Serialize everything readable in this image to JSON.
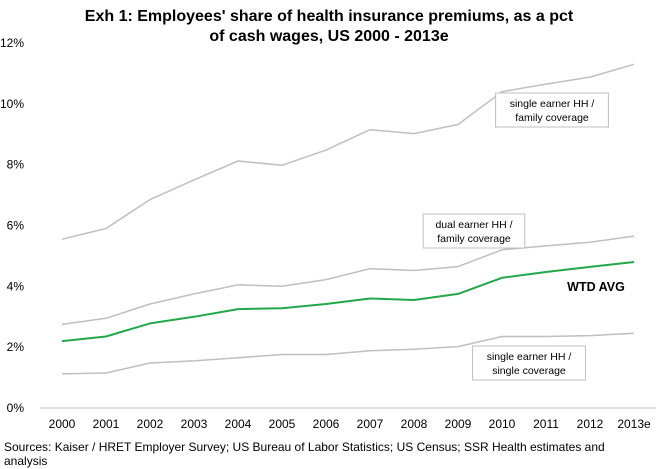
{
  "chart_data": {
    "type": "line",
    "title_line1": "Exh 1: Employees' share of health insurance premiums, as a pct",
    "title_line2": "of cash wages, US 2000 - 2013e",
    "xlabel": "",
    "ylabel": "",
    "categories": [
      "2000",
      "2001",
      "2002",
      "2003",
      "2004",
      "2005",
      "2006",
      "2007",
      "2008",
      "2009",
      "2010",
      "2011",
      "2012",
      "2013e"
    ],
    "ylim": [
      0,
      12
    ],
    "yticks": [
      0,
      2,
      4,
      6,
      8,
      10,
      12
    ],
    "ytick_suffix": "%",
    "grid": false,
    "series": [
      {
        "name": "single earner HH / family coverage",
        "label_lines": [
          "single earner HH /",
          "family coverage"
        ],
        "color": "#bfbfbf",
        "values": [
          5.55,
          5.9,
          6.85,
          7.5,
          8.12,
          7.98,
          8.48,
          9.15,
          9.02,
          9.32,
          10.4,
          10.65,
          10.88,
          11.3
        ]
      },
      {
        "name": "dual earner HH / family coverage",
        "label_lines": [
          "dual earner HH /",
          "family coverage"
        ],
        "color": "#bfbfbf",
        "values": [
          2.75,
          2.95,
          3.42,
          3.75,
          4.05,
          4.0,
          4.22,
          4.58,
          4.52,
          4.65,
          5.2,
          5.33,
          5.45,
          5.65
        ]
      },
      {
        "name": "WTD AVG",
        "label_lines": [
          "WTD AVG"
        ],
        "color": "#22a84a",
        "values": [
          2.2,
          2.35,
          2.78,
          3.0,
          3.25,
          3.28,
          3.42,
          3.6,
          3.55,
          3.75,
          4.28,
          4.47,
          4.64,
          4.8
        ]
      },
      {
        "name": "single earner HH / single coverage",
        "label_lines": [
          "single earner HH /",
          "single coverage"
        ],
        "color": "#bfbfbf",
        "values": [
          1.12,
          1.15,
          1.48,
          1.55,
          1.65,
          1.76,
          1.76,
          1.88,
          1.93,
          2.02,
          2.35,
          2.35,
          2.38,
          2.46
        ]
      }
    ],
    "source_line1": "Sources: Kaiser / HRET Employer Survey; US Bureau of Labor Statistics; US Census; SSR Health estimates and",
    "source_line2": "analysis"
  }
}
